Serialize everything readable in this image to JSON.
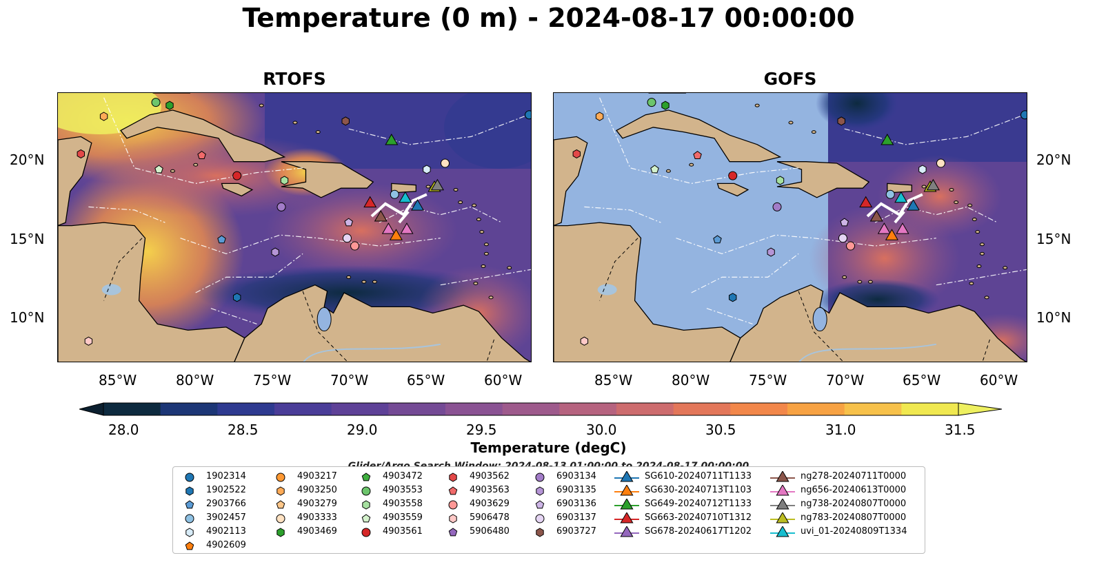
{
  "title": "Temperature (0 m) - 2024-08-17 00:00:00",
  "panels": [
    {
      "title": "RTOFS"
    },
    {
      "title": "GOFS"
    }
  ],
  "lat_labels": [
    "20°N",
    "15°N",
    "10°N"
  ],
  "lon_labels": [
    "85°W",
    "80°W",
    "75°W",
    "70°W",
    "65°W",
    "60°W"
  ],
  "colorbar": {
    "label": "Temperature (degC)",
    "ticks": [
      "28.0",
      "28.5",
      "29.0",
      "29.5",
      "30.0",
      "30.5",
      "31.0",
      "31.5"
    ],
    "colors": [
      "#0d2a3f",
      "#1c3676",
      "#2e3a90",
      "#4a3d98",
      "#5e4197",
      "#744a95",
      "#8a5293",
      "#9e5a8c",
      "#b6637f",
      "#cd6c6e",
      "#e3775a",
      "#f2874a",
      "#f7a243",
      "#f7c14a",
      "#f0e850"
    ]
  },
  "search_window": "Glider/Argo Search Window: 2024-08-13 01:00:00 to 2024-08-17 00:00:00",
  "legend": {
    "columns": [
      [
        {
          "label": "1902314",
          "marker": "circle",
          "color": "#1f77b4"
        },
        {
          "label": "1902522",
          "marker": "hexagon",
          "color": "#1f77b4"
        },
        {
          "label": "2903766",
          "marker": "pentagon",
          "color": "#5b9bd5"
        },
        {
          "label": "3902457",
          "marker": "circle",
          "color": "#8fc1e3"
        },
        {
          "label": "4902113",
          "marker": "hexagon",
          "color": "#d8ecf8"
        },
        {
          "label": "4902609",
          "marker": "pentagon",
          "color": "#ff7f0e"
        }
      ],
      [
        {
          "label": "4903217",
          "marker": "circle",
          "color": "#ff9933"
        },
        {
          "label": "4903250",
          "marker": "hexagon",
          "color": "#ffab57"
        },
        {
          "label": "4903279",
          "marker": "pentagon",
          "color": "#ffc78a"
        },
        {
          "label": "4903333",
          "marker": "circle",
          "color": "#ffe2c2"
        },
        {
          "label": "4903469",
          "marker": "hexagon",
          "color": "#2ca02c"
        }
      ],
      [
        {
          "label": "4903472",
          "marker": "pentagon",
          "color": "#3fae3f"
        },
        {
          "label": "4903553",
          "marker": "circle",
          "color": "#6cc56c"
        },
        {
          "label": "4903558",
          "marker": "hexagon",
          "color": "#a6e0a0"
        },
        {
          "label": "4903559",
          "marker": "pentagon",
          "color": "#d4f2cc"
        },
        {
          "label": "4903561",
          "marker": "circle",
          "color": "#d62728"
        }
      ],
      [
        {
          "label": "4903562",
          "marker": "hexagon",
          "color": "#e34848"
        },
        {
          "label": "4903563",
          "marker": "pentagon",
          "color": "#f06a6a"
        },
        {
          "label": "4903629",
          "marker": "circle",
          "color": "#ff9896"
        },
        {
          "label": "5906478",
          "marker": "hexagon",
          "color": "#ffc9c7"
        },
        {
          "label": "5906480",
          "marker": "pentagon",
          "color": "#9467bd"
        }
      ],
      [
        {
          "label": "6903134",
          "marker": "circle",
          "color": "#a27cc8"
        },
        {
          "label": "6903135",
          "marker": "hexagon",
          "color": "#b595d6"
        },
        {
          "label": "6903136",
          "marker": "pentagon",
          "color": "#cdb5e6"
        },
        {
          "label": "6903137",
          "marker": "circle",
          "color": "#e5d5f3"
        },
        {
          "label": "6903727",
          "marker": "hexagon",
          "color": "#8c564b"
        }
      ],
      [
        {
          "label": "SG610-20240711T1133",
          "marker": "triangle",
          "color": "#1f77b4"
        },
        {
          "label": "SG630-20240713T1103",
          "marker": "triangle",
          "color": "#ff7f0e"
        },
        {
          "label": "SG649-20240712T1133",
          "marker": "triangle",
          "color": "#2ca02c"
        },
        {
          "label": "SG663-20240710T1312",
          "marker": "triangle",
          "color": "#d62728"
        },
        {
          "label": "SG678-20240617T1202",
          "marker": "triangle",
          "color": "#9467bd"
        }
      ],
      [
        {
          "label": "ng278-20240711T0000",
          "marker": "triangle",
          "color": "#8c564b"
        },
        {
          "label": "ng656-20240613T0000",
          "marker": "triangle",
          "color": "#e377c2"
        },
        {
          "label": "ng738-20240807T0000",
          "marker": "triangle",
          "color": "#7f7f7f"
        },
        {
          "label": "ng783-20240807T0000",
          "marker": "triangle",
          "color": "#bcbd22"
        },
        {
          "label": "uvi_01-20240809T1334",
          "marker": "triangle",
          "color": "#17becf"
        }
      ]
    ]
  },
  "map_colors": {
    "land": "#d2b48c",
    "masked_ocean": "#94b4e0",
    "river": "#a8c4dc"
  }
}
